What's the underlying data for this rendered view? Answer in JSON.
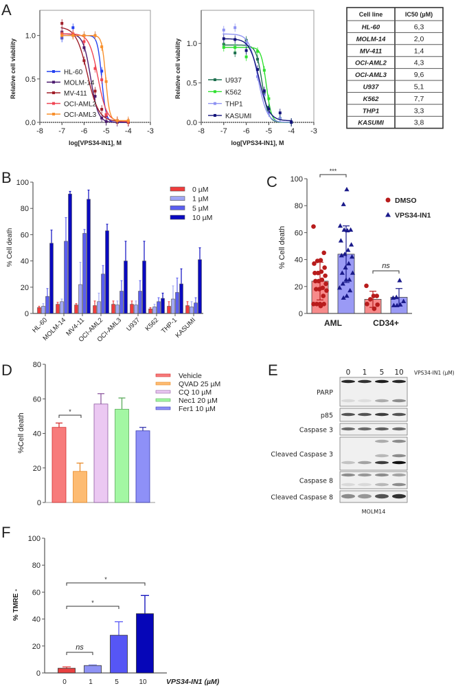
{
  "panel_letters": [
    "A",
    "B",
    "C",
    "D",
    "E",
    "F"
  ],
  "ic50_table": {
    "headers": [
      "Cell line",
      "IC50 (µM)"
    ],
    "rows": [
      [
        "HL-60",
        "6,3"
      ],
      [
        "MOLM-14",
        "2,0"
      ],
      [
        "MV-411",
        "1,4"
      ],
      [
        "OCI-AML2",
        "4,3"
      ],
      [
        "OCI-AML3",
        "9,6"
      ],
      [
        "U937",
        "5,1"
      ],
      [
        "K562",
        "7,7"
      ],
      [
        "THP1",
        "3,3"
      ],
      [
        "KASUMI",
        "3,8"
      ]
    ]
  },
  "western_blot": {
    "lane_labels": [
      "0",
      "1",
      "5",
      "10"
    ],
    "treatment_label": "VPS34-IN1 (µM)",
    "cell_line": "MOLM14",
    "blots": [
      {
        "label": "PARP",
        "bands": [
          [
            0.9,
            0.85,
            0.95,
            0.9
          ],
          [
            0.1,
            0.08,
            0.3,
            0.45
          ]
        ]
      },
      {
        "label": "p85",
        "bands": [
          [
            0.7,
            0.7,
            0.8,
            0.7
          ]
        ]
      },
      {
        "label": "Caspase 3",
        "bands": [
          [
            0.6,
            0.6,
            0.65,
            0.6
          ]
        ]
      },
      {
        "label": "Cleaved Caspase 3",
        "bands": [
          [
            0,
            0,
            0.3,
            0.45
          ],
          [
            0,
            0,
            0.25,
            0.45
          ],
          [
            0.2,
            0.35,
            0.8,
            1.0
          ]
        ]
      },
      {
        "label": "Caspase 8",
        "bands": [
          [
            0.45,
            0.4,
            0.45,
            0.35
          ],
          [
            0.1,
            0.1,
            0.25,
            0.45
          ]
        ]
      },
      {
        "label": "Cleaved Caspase 8",
        "bands": [
          [
            0.45,
            0.4,
            0.7,
            0.85
          ]
        ]
      }
    ]
  },
  "chart_data": [
    {
      "panel": "A-left",
      "type": "line",
      "xlabel": "log[VPS34-IN1], M",
      "ylabel": "Relative cell viability",
      "xlim": [
        -8,
        -3
      ],
      "ylim": [
        0,
        1.29
      ],
      "xticks": [
        -8,
        -7,
        -6,
        -5,
        -4,
        -3
      ],
      "yticks": [
        0.0,
        0.5,
        1.0
      ],
      "legend": "bottom-left",
      "x": [
        -7,
        -6.5,
        -6,
        -5.5,
        -5.2,
        -5,
        -4.5,
        -4
      ],
      "series": [
        {
          "name": "HL-60",
          "color": "#2440f0",
          "y": [
            0.97,
            1.09,
            1.0,
            1.0,
            0.59,
            0.07,
            0.02,
            0.0
          ],
          "fit": {
            "top": 1.0,
            "bottom": 0.0,
            "logIC50": -5.2,
            "hill": 4.5
          }
        },
        {
          "name": "MOLM-14",
          "color": "#4b1a6e",
          "y": [
            1.04,
            1.01,
            0.86,
            0.3,
            0.05,
            0.01,
            0.0,
            0.0
          ],
          "fit": {
            "top": 1.02,
            "bottom": 0.0,
            "logIC50": -5.7,
            "hill": 2.6
          }
        },
        {
          "name": "MV-411",
          "color": "#a01e28",
          "y": [
            1.14,
            1.01,
            0.71,
            0.36,
            0.15,
            0.08,
            0.02,
            0.0
          ],
          "fit": {
            "top": 1.1,
            "bottom": 0.01,
            "logIC50": -5.85,
            "hill": 1.7
          }
        },
        {
          "name": "OCI-AML2",
          "color": "#f04452",
          "y": [
            1.02,
            1.02,
            0.93,
            0.62,
            0.49,
            0.09,
            0.02,
            0.01
          ],
          "fit": {
            "top": 1.02,
            "bottom": 0.01,
            "logIC50": -5.37,
            "hill": 2.2
          }
        },
        {
          "name": "OCI-AML3",
          "color": "#f8902c",
          "y": [
            1.0,
            1.0,
            1.0,
            1.0,
            0.87,
            0.47,
            0.02,
            0.02
          ],
          "fit": {
            "top": 1.0,
            "bottom": 0.02,
            "logIC50": -5.02,
            "hill": 5
          }
        }
      ]
    },
    {
      "panel": "A-right",
      "type": "line",
      "xlabel": "log[VPS34-IN1], M",
      "ylabel": "Relative cell viability",
      "xlim": [
        -8,
        -3
      ],
      "ylim": [
        0,
        1.42
      ],
      "xticks": [
        -8,
        -7,
        -6,
        -5,
        -4,
        -3
      ],
      "yticks": [
        0.0,
        0.5,
        1.0
      ],
      "legend": "bottom-left",
      "x": [
        -7,
        -6.5,
        -6,
        -5.5,
        -5.2,
        -5,
        -4.5,
        -4
      ],
      "series": [
        {
          "name": "U937",
          "color": "#1f7050",
          "y": [
            0.99,
            0.88,
            1.04,
            0.8,
            0.38,
            0.19,
            0.05,
            0.0
          ],
          "fit": {
            "top": 0.98,
            "bottom": 0.0,
            "logIC50": -5.29,
            "hill": 3.2
          }
        },
        {
          "name": "K562",
          "color": "#30e030",
          "y": [
            0.95,
            0.95,
            0.83,
            0.9,
            0.66,
            0.3,
            0.05,
            0.0
          ],
          "fit": {
            "top": 0.95,
            "bottom": 0.0,
            "logIC50": -5.11,
            "hill": 3.8
          }
        },
        {
          "name": "THP1",
          "color": "#8e92f2",
          "y": [
            1.17,
            1.2,
            1.0,
            0.58,
            0.35,
            0.12,
            0.05,
            0.0
          ],
          "fit": {
            "top": 1.12,
            "bottom": 0.0,
            "logIC50": -5.48,
            "hill": 2.2
          }
        },
        {
          "name": "KASUMI",
          "color": "#12127a",
          "y": [
            1.06,
            1.05,
            0.91,
            0.67,
            0.4,
            0.17,
            0.12,
            0.0
          ],
          "fit": {
            "top": 1.06,
            "bottom": 0.02,
            "logIC50": -5.42,
            "hill": 2.0
          }
        }
      ]
    },
    {
      "panel": "B",
      "type": "bar",
      "ylabel": "% Cell death",
      "ylim": [
        0,
        100
      ],
      "yticks": [
        0,
        20,
        40,
        60,
        80,
        100
      ],
      "legend": "top-right",
      "categories": [
        "HL-60",
        "MOLM-14",
        "MV4-11",
        "OCI-AML2",
        "OCI-AML3",
        "U937",
        "K562",
        "THP-1",
        "KASUMI"
      ],
      "series": [
        {
          "name": "0  µM",
          "color": "#f03c3c",
          "values": [
            4.5,
            7,
            6.5,
            6,
            7,
            7,
            3.5,
            5.5,
            6
          ],
          "errors": [
            1,
            1.5,
            1,
            3.5,
            2.5,
            2.5,
            1,
            3.5,
            3
          ]
        },
        {
          "name": "1  µM",
          "color": "#a0a6f5",
          "values": [
            5.5,
            9,
            22,
            9,
            6.5,
            6.5,
            5,
            11,
            5
          ],
          "errors": [
            2,
            2,
            17,
            6.5,
            3,
            3,
            2,
            10,
            4
          ]
        },
        {
          "name": "5  µM",
          "color": "#5a5ef0",
          "values": [
            13,
            55,
            61,
            30,
            17,
            17,
            9,
            16,
            8
          ],
          "errors": [
            6,
            18,
            3,
            6.5,
            8,
            8,
            3,
            11,
            4
          ]
        },
        {
          "name": "10  µM",
          "color": "#0a0ac0",
          "values": [
            53.5,
            91,
            87,
            63,
            40,
            40,
            11.5,
            22.5,
            41
          ],
          "errors": [
            10,
            2,
            7,
            5,
            15,
            15,
            4,
            11.5,
            9
          ]
        }
      ]
    },
    {
      "panel": "C",
      "type": "bar",
      "ylabel": "% Cell death",
      "ylim": [
        0,
        100
      ],
      "yticks": [
        0,
        20,
        40,
        60,
        80,
        100
      ],
      "legend": "top-right",
      "categories": [
        "AML",
        "CD34+"
      ],
      "significance": [
        {
          "groups": [
            "AML DMSO",
            "AML VPS34-IN1"
          ],
          "label": "***"
        },
        {
          "groups": [
            "CD34+ DMSO",
            "CD34+ VPS34-IN1"
          ],
          "label": "ns"
        }
      ],
      "series": [
        {
          "name": "DMSO",
          "bar_color": "#f78a8a",
          "point_color": "#b81c1c",
          "means": [
            24,
            10.5
          ],
          "sd": [
            14,
            6
          ],
          "points": [
            [
              64.5,
              45,
              39.5,
              39,
              37,
              34,
              31,
              30,
              30,
              28,
              25,
              24,
              24,
              22,
              19,
              18,
              18,
              17,
              13,
              7,
              7,
              7,
              7,
              5.5
            ],
            [
              20.5,
              13,
              13,
              10.5,
              7,
              6.5,
              3.5
            ]
          ]
        },
        {
          "name": "VPS34-IN1",
          "bar_color": "#9a9af5",
          "point_color": "#1a1a8a",
          "means": [
            44,
            12
          ],
          "sd": [
            21,
            6.5
          ],
          "points": [
            [
              92,
              81,
              65,
              62,
              61.5,
              62,
              54,
              51,
              47,
              44,
              43,
              42,
              37,
              34,
              30,
              30,
              25,
              25,
              22,
              19,
              17,
              13,
              11.5
            ],
            [
              24.5,
              12,
              11.5,
              9,
              6.5,
              6,
              6
            ]
          ]
        }
      ]
    },
    {
      "panel": "D",
      "type": "bar",
      "ylabel": "%Cell death",
      "ylim": [
        0,
        80
      ],
      "yticks": [
        0,
        20,
        40,
        60,
        80
      ],
      "legend": "top-right",
      "categories": [
        "Vehicle",
        "QVAD 25 µM",
        "CQ 10 µM",
        "Nec1 20 µM",
        "Fer1 10 µM"
      ],
      "values": [
        43.5,
        18,
        57,
        54,
        41.5
      ],
      "errors": [
        2.5,
        4.8,
        6,
        6.5,
        2
      ],
      "colors": [
        "#f77b7b",
        "#fdbb72",
        "#ebc8f2",
        "#a3f7a3",
        "#8e90f7"
      ],
      "edge_colors": [
        "#d23030",
        "#e88a28",
        "#8e5aa0",
        "#5aaa5a",
        "#3a3ab0"
      ],
      "significance": [
        {
          "groups": [
            "Vehicle",
            "QVAD 25 µM"
          ],
          "label": "*"
        }
      ]
    },
    {
      "panel": "F",
      "type": "bar",
      "ylabel": "% TMRE -",
      "xlabel": "VPS34-IN1  (µM)",
      "ylim": [
        0,
        100
      ],
      "yticks": [
        0,
        20,
        40,
        60,
        80,
        100
      ],
      "categories": [
        "0",
        "1",
        "5",
        "10"
      ],
      "values": [
        3.5,
        5.5,
        28,
        44
      ],
      "errors": [
        1,
        0.5,
        10,
        13.5
      ],
      "colors": [
        "#e84040",
        "#8e92f5",
        "#5656f5",
        "#0606b8"
      ],
      "significance": [
        {
          "groups": [
            "0",
            "1"
          ],
          "label": "ns"
        },
        {
          "groups": [
            "0",
            "5"
          ],
          "label": "*"
        },
        {
          "groups": [
            "0",
            "10"
          ],
          "label": "*"
        }
      ]
    }
  ]
}
